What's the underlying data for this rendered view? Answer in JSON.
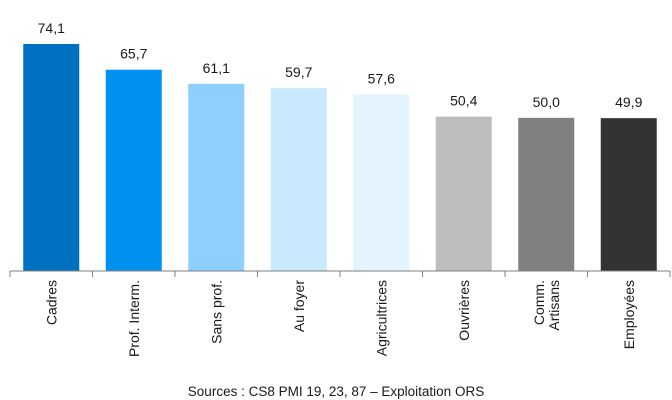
{
  "chart_data": {
    "type": "bar",
    "categories": [
      [
        "Cadres"
      ],
      [
        "Prof. Interm."
      ],
      [
        "Sans prof."
      ],
      [
        "Au foyer"
      ],
      [
        "Agricultrices"
      ],
      [
        "Ouvrières"
      ],
      [
        "Comm.",
        "Artisans"
      ],
      [
        "Employées"
      ]
    ],
    "values": [
      74.1,
      65.7,
      61.1,
      59.7,
      57.6,
      50.4,
      50.0,
      49.9
    ],
    "value_labels": [
      "74,1",
      "65,7",
      "61,1",
      "59,7",
      "57,6",
      "50,4",
      "50,0",
      "49,9"
    ],
    "colors": [
      "#0070C0",
      "#0090F0",
      "#8DD0FF",
      "#C9E9FF",
      "#E4F4FF",
      "#BDBDBD",
      "#808080",
      "#333333"
    ],
    "ylim": [
      0,
      74.1
    ],
    "grid": false,
    "legend": "none",
    "category_label_orientation": "vertical"
  },
  "source": "Sources : CS8 PMI 19, 23, 87 – Exploitation ORS"
}
